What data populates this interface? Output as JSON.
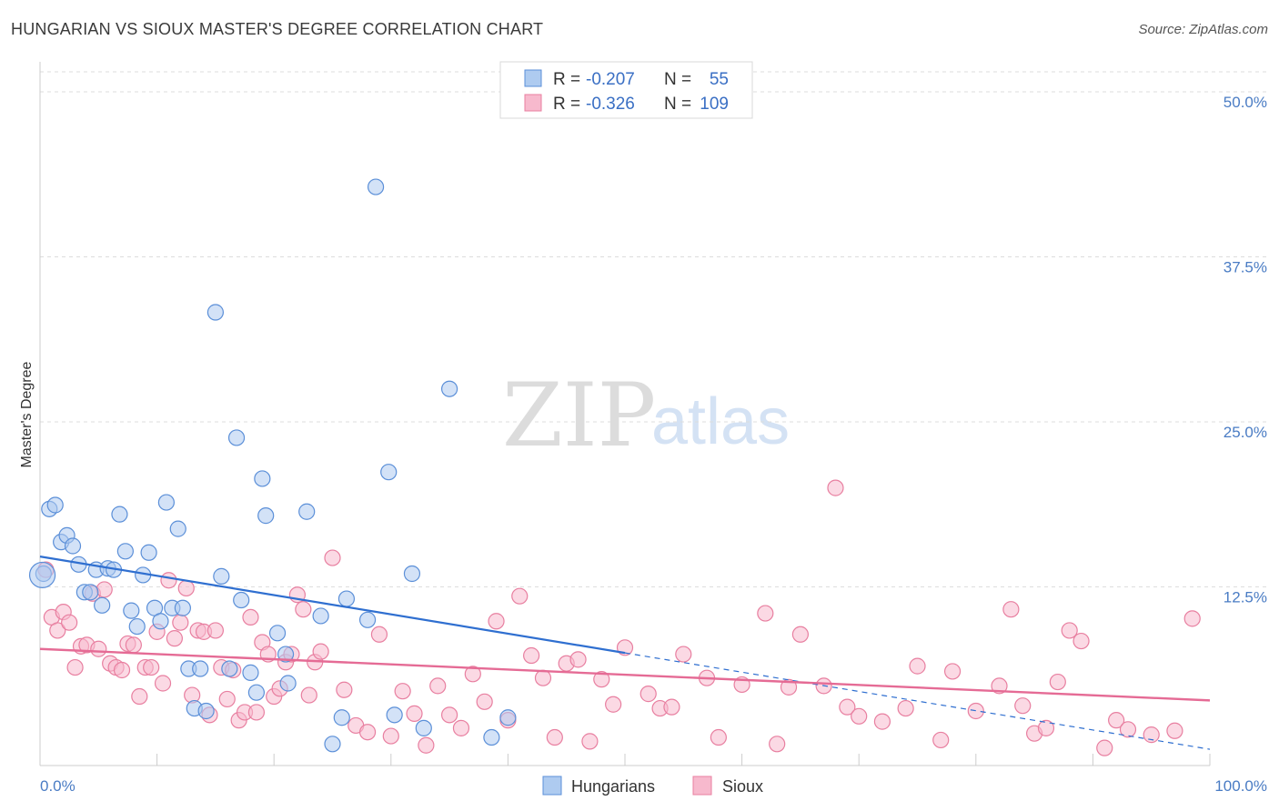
{
  "title": "HUNGARIAN VS SIOUX MASTER'S DEGREE CORRELATION CHART",
  "source": "Source: ZipAtlas.com",
  "watermark": {
    "zip": "ZIP",
    "atlas": "atlas"
  },
  "colors": {
    "hungarian_fill": "#aecbf0",
    "hungarian_stroke": "#5b8fd8",
    "hungarian_line": "#2f6fd0",
    "sioux_fill": "#f7b9cd",
    "sioux_stroke": "#e87fa0",
    "sioux_line": "#e56b95",
    "axis_text": "#4a7cc4",
    "grid": "#dddddd"
  },
  "legend": {
    "rows": [
      {
        "r_label": "R =",
        "r_value": "-0.207",
        "n_label": "N =",
        "n_value": "55"
      },
      {
        "r_label": "R =",
        "r_value": "-0.326",
        "n_label": "N =",
        "n_value": "109"
      }
    ]
  },
  "bottom_legend": [
    "Hungarians",
    "Sioux"
  ],
  "chart_data": {
    "type": "scatter",
    "title": "HUNGARIAN VS SIOUX MASTER'S DEGREE CORRELATION CHART",
    "xlabel": "",
    "ylabel": "Master's Degree",
    "xlim": [
      0,
      100
    ],
    "ylim": [
      0,
      52
    ],
    "x_tick_labels": [
      "0.0%",
      "100.0%"
    ],
    "y_ticks": [
      12.5,
      25.0,
      37.5,
      50.0
    ],
    "y_tick_labels": [
      "12.5%",
      "25.0%",
      "37.5%",
      "50.0%"
    ],
    "grid": true,
    "series": [
      {
        "name": "Hungarians",
        "r": -0.207,
        "n": 55,
        "trend": {
          "x0": 0,
          "y0": 14.8,
          "x1": 50,
          "y1": 7.5,
          "dash_to_x": 100,
          "dash_to_y": 0.2
        },
        "points": [
          [
            0.3,
            13.5
          ],
          [
            0.8,
            18.4
          ],
          [
            1.3,
            18.7
          ],
          [
            1.8,
            15.9
          ],
          [
            2.3,
            16.4
          ],
          [
            2.8,
            15.6
          ],
          [
            3.3,
            14.2
          ],
          [
            3.8,
            12.1
          ],
          [
            4.3,
            12.1
          ],
          [
            4.8,
            13.8
          ],
          [
            5.3,
            11.1
          ],
          [
            5.8,
            13.9
          ],
          [
            6.3,
            13.8
          ],
          [
            6.8,
            18.0
          ],
          [
            7.3,
            15.2
          ],
          [
            7.8,
            10.7
          ],
          [
            8.3,
            9.5
          ],
          [
            8.8,
            13.4
          ],
          [
            9.3,
            15.1
          ],
          [
            9.8,
            10.9
          ],
          [
            10.3,
            9.9
          ],
          [
            10.8,
            18.9
          ],
          [
            11.3,
            10.9
          ],
          [
            11.8,
            16.9
          ],
          [
            12.2,
            10.9
          ],
          [
            12.7,
            6.3
          ],
          [
            13.2,
            3.3
          ],
          [
            13.7,
            6.3
          ],
          [
            14.2,
            3.1
          ],
          [
            15.0,
            33.3
          ],
          [
            15.5,
            13.3
          ],
          [
            16.2,
            6.3
          ],
          [
            16.8,
            23.8
          ],
          [
            17.2,
            11.5
          ],
          [
            18.0,
            6.0
          ],
          [
            18.5,
            4.5
          ],
          [
            19.0,
            20.7
          ],
          [
            19.3,
            17.9
          ],
          [
            20.3,
            9.0
          ],
          [
            21.0,
            7.4
          ],
          [
            21.2,
            5.2
          ],
          [
            22.8,
            18.2
          ],
          [
            24.0,
            10.3
          ],
          [
            25.0,
            0.6
          ],
          [
            25.8,
            2.6
          ],
          [
            26.2,
            11.6
          ],
          [
            28.0,
            10.0
          ],
          [
            28.7,
            42.8
          ],
          [
            29.8,
            21.2
          ],
          [
            30.3,
            2.8
          ],
          [
            31.8,
            13.5
          ],
          [
            32.8,
            1.8
          ],
          [
            35.0,
            27.5
          ],
          [
            38.6,
            1.1
          ],
          [
            40.0,
            2.6
          ]
        ]
      },
      {
        "name": "Sioux",
        "r": -0.326,
        "n": 109,
        "trend": {
          "x0": 0,
          "y0": 7.8,
          "x1": 100,
          "y1": 3.9
        },
        "points": [
          [
            0.5,
            13.8
          ],
          [
            1.0,
            10.2
          ],
          [
            1.5,
            9.2
          ],
          [
            2.0,
            10.6
          ],
          [
            2.5,
            9.8
          ],
          [
            3.0,
            6.4
          ],
          [
            3.5,
            8.0
          ],
          [
            4.0,
            8.1
          ],
          [
            4.5,
            12.0
          ],
          [
            5.0,
            7.8
          ],
          [
            5.5,
            12.3
          ],
          [
            6.0,
            6.7
          ],
          [
            6.5,
            6.4
          ],
          [
            7.0,
            6.2
          ],
          [
            7.5,
            8.2
          ],
          [
            8.0,
            8.1
          ],
          [
            8.5,
            4.2
          ],
          [
            9.0,
            6.4
          ],
          [
            9.5,
            6.4
          ],
          [
            10.0,
            9.1
          ],
          [
            10.5,
            5.2
          ],
          [
            11.0,
            13.0
          ],
          [
            11.5,
            8.6
          ],
          [
            12.0,
            9.8
          ],
          [
            12.5,
            12.4
          ],
          [
            13.0,
            4.3
          ],
          [
            13.5,
            9.2
          ],
          [
            14.0,
            9.1
          ],
          [
            14.5,
            2.8
          ],
          [
            15.0,
            9.2
          ],
          [
            15.5,
            6.4
          ],
          [
            16.0,
            4.0
          ],
          [
            16.5,
            6.2
          ],
          [
            17.0,
            2.4
          ],
          [
            17.5,
            3.0
          ],
          [
            18.0,
            10.2
          ],
          [
            18.5,
            3.0
          ],
          [
            19.0,
            8.3
          ],
          [
            19.5,
            7.4
          ],
          [
            20.0,
            4.2
          ],
          [
            20.5,
            4.8
          ],
          [
            21.0,
            6.8
          ],
          [
            21.5,
            7.4
          ],
          [
            22.0,
            11.9
          ],
          [
            22.5,
            10.8
          ],
          [
            23.0,
            4.3
          ],
          [
            23.5,
            6.8
          ],
          [
            24.0,
            7.6
          ],
          [
            25.0,
            14.7
          ],
          [
            26.0,
            4.7
          ],
          [
            27.0,
            2.0
          ],
          [
            28.0,
            1.5
          ],
          [
            29.0,
            8.9
          ],
          [
            30.0,
            1.2
          ],
          [
            31.0,
            4.6
          ],
          [
            32.0,
            2.9
          ],
          [
            33.0,
            0.5
          ],
          [
            34.0,
            5.0
          ],
          [
            35.0,
            2.8
          ],
          [
            36.0,
            1.8
          ],
          [
            37.0,
            5.9
          ],
          [
            38.0,
            3.8
          ],
          [
            39.0,
            9.9
          ],
          [
            40.0,
            2.4
          ],
          [
            41.0,
            11.8
          ],
          [
            42.0,
            7.3
          ],
          [
            43.0,
            5.6
          ],
          [
            44.0,
            1.1
          ],
          [
            45.0,
            6.7
          ],
          [
            46.0,
            7.0
          ],
          [
            47.0,
            0.8
          ],
          [
            48.0,
            5.5
          ],
          [
            49.0,
            3.6
          ],
          [
            50.0,
            7.9
          ],
          [
            52.0,
            4.4
          ],
          [
            53.0,
            3.3
          ],
          [
            54.0,
            3.4
          ],
          [
            55.0,
            7.4
          ],
          [
            57.0,
            5.6
          ],
          [
            58.0,
            1.1
          ],
          [
            60.0,
            5.1
          ],
          [
            62.0,
            10.5
          ],
          [
            63.0,
            0.6
          ],
          [
            64.0,
            4.9
          ],
          [
            65.0,
            8.9
          ],
          [
            67.0,
            5.0
          ],
          [
            68.0,
            20.0
          ],
          [
            69.0,
            3.4
          ],
          [
            70.0,
            2.7
          ],
          [
            72.0,
            2.3
          ],
          [
            74.0,
            3.3
          ],
          [
            75.0,
            6.5
          ],
          [
            77.0,
            0.9
          ],
          [
            78.0,
            6.1
          ],
          [
            80.0,
            3.1
          ],
          [
            82.0,
            5.0
          ],
          [
            83.0,
            10.8
          ],
          [
            84.0,
            3.5
          ],
          [
            85.0,
            1.4
          ],
          [
            86.0,
            1.8
          ],
          [
            87.0,
            5.3
          ],
          [
            88.0,
            9.2
          ],
          [
            89.0,
            8.4
          ],
          [
            91.0,
            0.3
          ],
          [
            92.0,
            2.4
          ],
          [
            93.0,
            1.7
          ],
          [
            95.0,
            1.3
          ],
          [
            97.0,
            1.6
          ],
          [
            98.5,
            10.1
          ]
        ]
      }
    ]
  }
}
